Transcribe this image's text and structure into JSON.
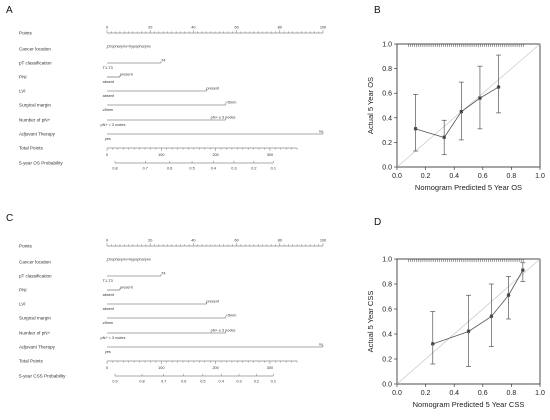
{
  "panels": {
    "a": "A",
    "b": "B",
    "c": "C",
    "d": "D"
  },
  "nomogram_A": {
    "rows": [
      {
        "label": "Points"
      },
      {
        "label": "Cancer location",
        "levels": [
          "Oropharynx+hypopharynx"
        ]
      },
      {
        "label": "pT classification",
        "levels": [
          "T4",
          "T1-T3"
        ]
      },
      {
        "label": "PNI",
        "levels": [
          "present",
          "absent"
        ]
      },
      {
        "label": "LVI",
        "levels": [
          "present",
          "absent"
        ]
      },
      {
        "label": "Surgical margin",
        "levels": [
          "<5mm",
          "≥5mm"
        ]
      },
      {
        "label": "Number of pN+",
        "levels": [
          "pN+ ≥ 3 nodes",
          "pN+ < 3 nodes"
        ]
      },
      {
        "label": "Adjuvant Therapy",
        "levels": [
          "no",
          "yes"
        ]
      },
      {
        "label": "Total Points"
      },
      {
        "label": "5-year OS Probability"
      }
    ],
    "points_ticks": [
      "0",
      "20",
      "40",
      "60",
      "80",
      "100"
    ],
    "total_ticks": [
      "0",
      "100",
      "200",
      "300"
    ],
    "prob_ticks": [
      "0.8",
      "0.7",
      "0.6",
      "0.5",
      "0.4",
      "0.3",
      "0.2",
      "0.1"
    ]
  },
  "nomogram_C": {
    "rows": [
      {
        "label": "Points"
      },
      {
        "label": "Cancer location",
        "levels": [
          "Oropharynx+hypopharynx"
        ]
      },
      {
        "label": "pT classification",
        "levels": [
          "T4",
          "T1-T3"
        ]
      },
      {
        "label": "PNI",
        "levels": [
          "present",
          "absent"
        ]
      },
      {
        "label": "LVI",
        "levels": [
          "present",
          "absent"
        ]
      },
      {
        "label": "Surgical margin",
        "levels": [
          "<5mm",
          "≥5mm"
        ]
      },
      {
        "label": "Number of pN+",
        "levels": [
          "pN+ ≥ 3 nodes",
          "pN+ < 3 nodes"
        ]
      },
      {
        "label": "Adjuvant Therapy",
        "levels": [
          "no",
          "yes"
        ]
      },
      {
        "label": "Total Points"
      },
      {
        "label": "5-year CSS Probability"
      }
    ],
    "points_ticks": [
      "0",
      "20",
      "40",
      "60",
      "80",
      "100"
    ],
    "total_ticks": [
      "0",
      "100",
      "200",
      "300"
    ],
    "prob_ticks": [
      "0.9",
      "0.8",
      "0.7",
      "0.6",
      "0.5",
      "0.4",
      "0.3",
      "0.2",
      "0.1"
    ]
  },
  "chart_data": [
    {
      "type": "scatter",
      "xlabel": "Nomogram Predicted 5 Year OS",
      "ylabel": "Actual 5 Year OS",
      "xlim": [
        0.0,
        1.0
      ],
      "ylim": [
        0.0,
        1.0
      ],
      "xticks": [
        "0.0",
        "0.2",
        "0.4",
        "0.6",
        "0.8",
        "1.0"
      ],
      "yticks": [
        "0.0",
        "0.2",
        "0.4",
        "0.6",
        "0.8",
        "1.0"
      ],
      "series": [
        {
          "x": [
            0.13,
            0.33,
            0.45,
            0.58,
            0.71
          ],
          "y": [
            0.31,
            0.24,
            0.45,
            0.56,
            0.65
          ],
          "lo": [
            0.13,
            0.1,
            0.22,
            0.31,
            0.44
          ],
          "hi": [
            0.59,
            0.38,
            0.69,
            0.82,
            0.91
          ]
        }
      ]
    },
    {
      "type": "scatter",
      "xlabel": "Nomogram Predicted 5 Year CSS",
      "ylabel": "Actual 5 Year CSS",
      "xlim": [
        0.0,
        1.0
      ],
      "ylim": [
        0.0,
        1.0
      ],
      "xticks": [
        "0.0",
        "0.2",
        "0.4",
        "0.6",
        "0.8",
        "1.0"
      ],
      "yticks": [
        "0.0",
        "0.2",
        "0.4",
        "0.6",
        "0.8",
        "1.0"
      ],
      "series": [
        {
          "x": [
            0.25,
            0.5,
            0.66,
            0.78,
            0.88
          ],
          "y": [
            0.32,
            0.42,
            0.54,
            0.71,
            0.91
          ],
          "lo": [
            0.16,
            0.14,
            0.3,
            0.52,
            0.82
          ],
          "hi": [
            0.58,
            0.71,
            0.8,
            0.86,
            0.97
          ]
        }
      ]
    }
  ]
}
